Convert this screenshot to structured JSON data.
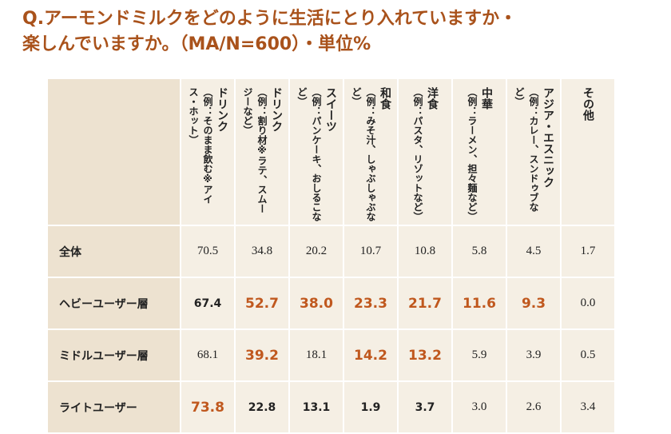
{
  "header": {
    "title_lines": [
      "Q.アーモンドミルクをどのように生活にとり入れていますか・",
      "楽しんでいますか。（MA/N=600）・単位%"
    ],
    "color": "#a9521b"
  },
  "table": {
    "columns": [
      {
        "label": "ドリンク",
        "note": "（例：そのまま飲む※アイス・ホット）"
      },
      {
        "label": "ドリンク",
        "note": "（例：割り材※ラテ、スムージーなど）"
      },
      {
        "label": "スイーツ",
        "note": "（例：パンケーキ、おしるこなど）"
      },
      {
        "label": "和食",
        "note": "（例：みそ汁、しゃぶしゃぶなど）"
      },
      {
        "label": "洋食",
        "note": "（例：パスタ、リゾットなど）"
      },
      {
        "label": "中華",
        "note": "（例：ラーメン、担々麺など）"
      },
      {
        "label": "アジア・エスニック",
        "note": "（例：カレー、スンドゥブなど）"
      },
      {
        "label": "その他"
      }
    ],
    "highlight_color": "#c0581e",
    "rows": [
      {
        "label": "全体",
        "cells": [
          "70.5",
          "34.8",
          "20.2",
          "10.7",
          "10.8",
          "5.8",
          "4.5",
          "1.7"
        ],
        "styles": [
          "normal",
          "normal",
          "normal",
          "normal",
          "normal",
          "normal",
          "normal",
          "normal"
        ]
      },
      {
        "label": "ヘビーユーザー層",
        "cells": [
          "67.4",
          "52.7",
          "38.0",
          "23.3",
          "21.7",
          "11.6",
          "9.3",
          "0.0"
        ],
        "styles": [
          "bold",
          "highlight",
          "highlight",
          "highlight",
          "highlight",
          "highlight",
          "highlight",
          "normal"
        ]
      },
      {
        "label": "ミドルユーザー層",
        "cells": [
          "68.1",
          "39.2",
          "18.1",
          "14.2",
          "13.2",
          "5.9",
          "3.9",
          "0.5"
        ],
        "styles": [
          "normal",
          "highlight",
          "normal",
          "highlight",
          "highlight",
          "normal",
          "normal",
          "normal"
        ]
      },
      {
        "label": "ライトユーザー",
        "cells": [
          "73.8",
          "22.8",
          "13.1",
          "1.9",
          "3.7",
          "3.0",
          "2.6",
          "3.4"
        ],
        "styles": [
          "highlight",
          "bold",
          "bold",
          "bold",
          "bold",
          "normal",
          "normal",
          "normal"
        ]
      }
    ]
  }
}
